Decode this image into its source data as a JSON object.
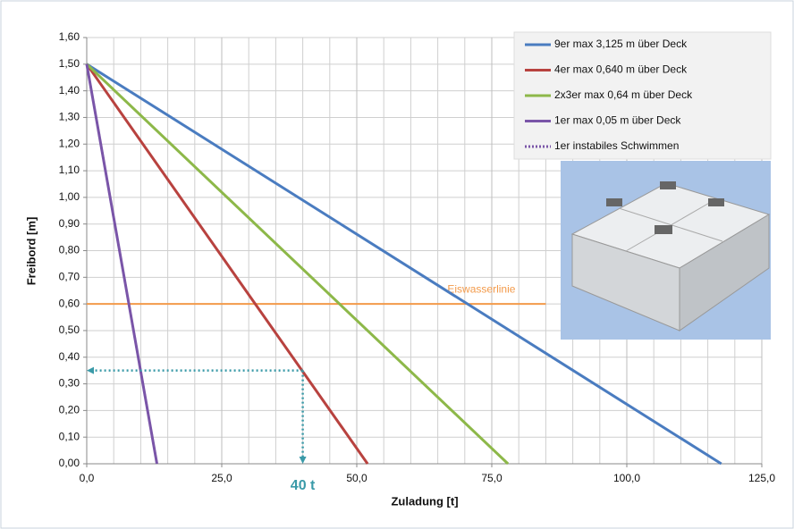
{
  "chart_data": {
    "type": "line",
    "x_label": "Zuladung [t]",
    "y_label": "Freibord  [m]",
    "xlim": [
      0,
      125
    ],
    "xticks": [
      {
        "value": 0,
        "label": "0,0"
      },
      {
        "value": 25,
        "label": "25,0"
      },
      {
        "value": 50,
        "label": "50,0"
      },
      {
        "value": 75,
        "label": "75,0"
      },
      {
        "value": 100,
        "label": "100,0"
      },
      {
        "value": 125,
        "label": "125,0"
      }
    ],
    "ylim": [
      0,
      1.6
    ],
    "yticks": [
      {
        "value": 0,
        "label": "0,00"
      },
      {
        "value": 0.1,
        "label": "0,10"
      },
      {
        "value": 0.2,
        "label": "0,20"
      },
      {
        "value": 0.3,
        "label": "0,30"
      },
      {
        "value": 0.4,
        "label": "0,40"
      },
      {
        "value": 0.5,
        "label": "0,50"
      },
      {
        "value": 0.6,
        "label": "0,60"
      },
      {
        "value": 0.7,
        "label": "0,70"
      },
      {
        "value": 0.8,
        "label": "0,80"
      },
      {
        "value": 0.9,
        "label": "0,90"
      },
      {
        "value": 1.0,
        "label": "1,00"
      },
      {
        "value": 1.1,
        "label": "1,10"
      },
      {
        "value": 1.2,
        "label": "1,20"
      },
      {
        "value": 1.3,
        "label": "1,30"
      },
      {
        "value": 1.4,
        "label": "1,40"
      },
      {
        "value": 1.5,
        "label": "1,50"
      },
      {
        "value": 1.6,
        "label": "1,60"
      }
    ],
    "grid": true,
    "legend": "upper right",
    "series": [
      {
        "name": "9er max 3,125 m über Deck",
        "color": "#4a7cc0",
        "dotted": false,
        "x": [
          0,
          117.5
        ],
        "values": [
          1.5,
          0
        ]
      },
      {
        "name": "4er max 0,640 m über Deck",
        "color": "#b8423f",
        "dotted": false,
        "x": [
          0,
          52
        ],
        "values": [
          1.5,
          0
        ]
      },
      {
        "name": "2x3er max 0,64 m über Deck",
        "color": "#8db849",
        "dotted": false,
        "x": [
          0,
          78
        ],
        "values": [
          1.5,
          0
        ]
      },
      {
        "name": "1er max 0,05 m über Deck",
        "color": "#7a55a8",
        "dotted": false,
        "x": [
          0,
          13
        ],
        "values": [
          1.5,
          0
        ]
      },
      {
        "name": "1er instabiles Schwimmen",
        "color": "#7a55a8",
        "dotted": true,
        "x": [
          0,
          13
        ],
        "values": [
          1.5,
          0
        ]
      }
    ],
    "hline": {
      "label": "Eiswasserlinie",
      "value": 0.6,
      "x": [
        0,
        85
      ],
      "color": "#f39a4a"
    },
    "marker": {
      "label": "40 t",
      "x": 40,
      "y": 0.35,
      "color": "#3a9aa8"
    }
  }
}
